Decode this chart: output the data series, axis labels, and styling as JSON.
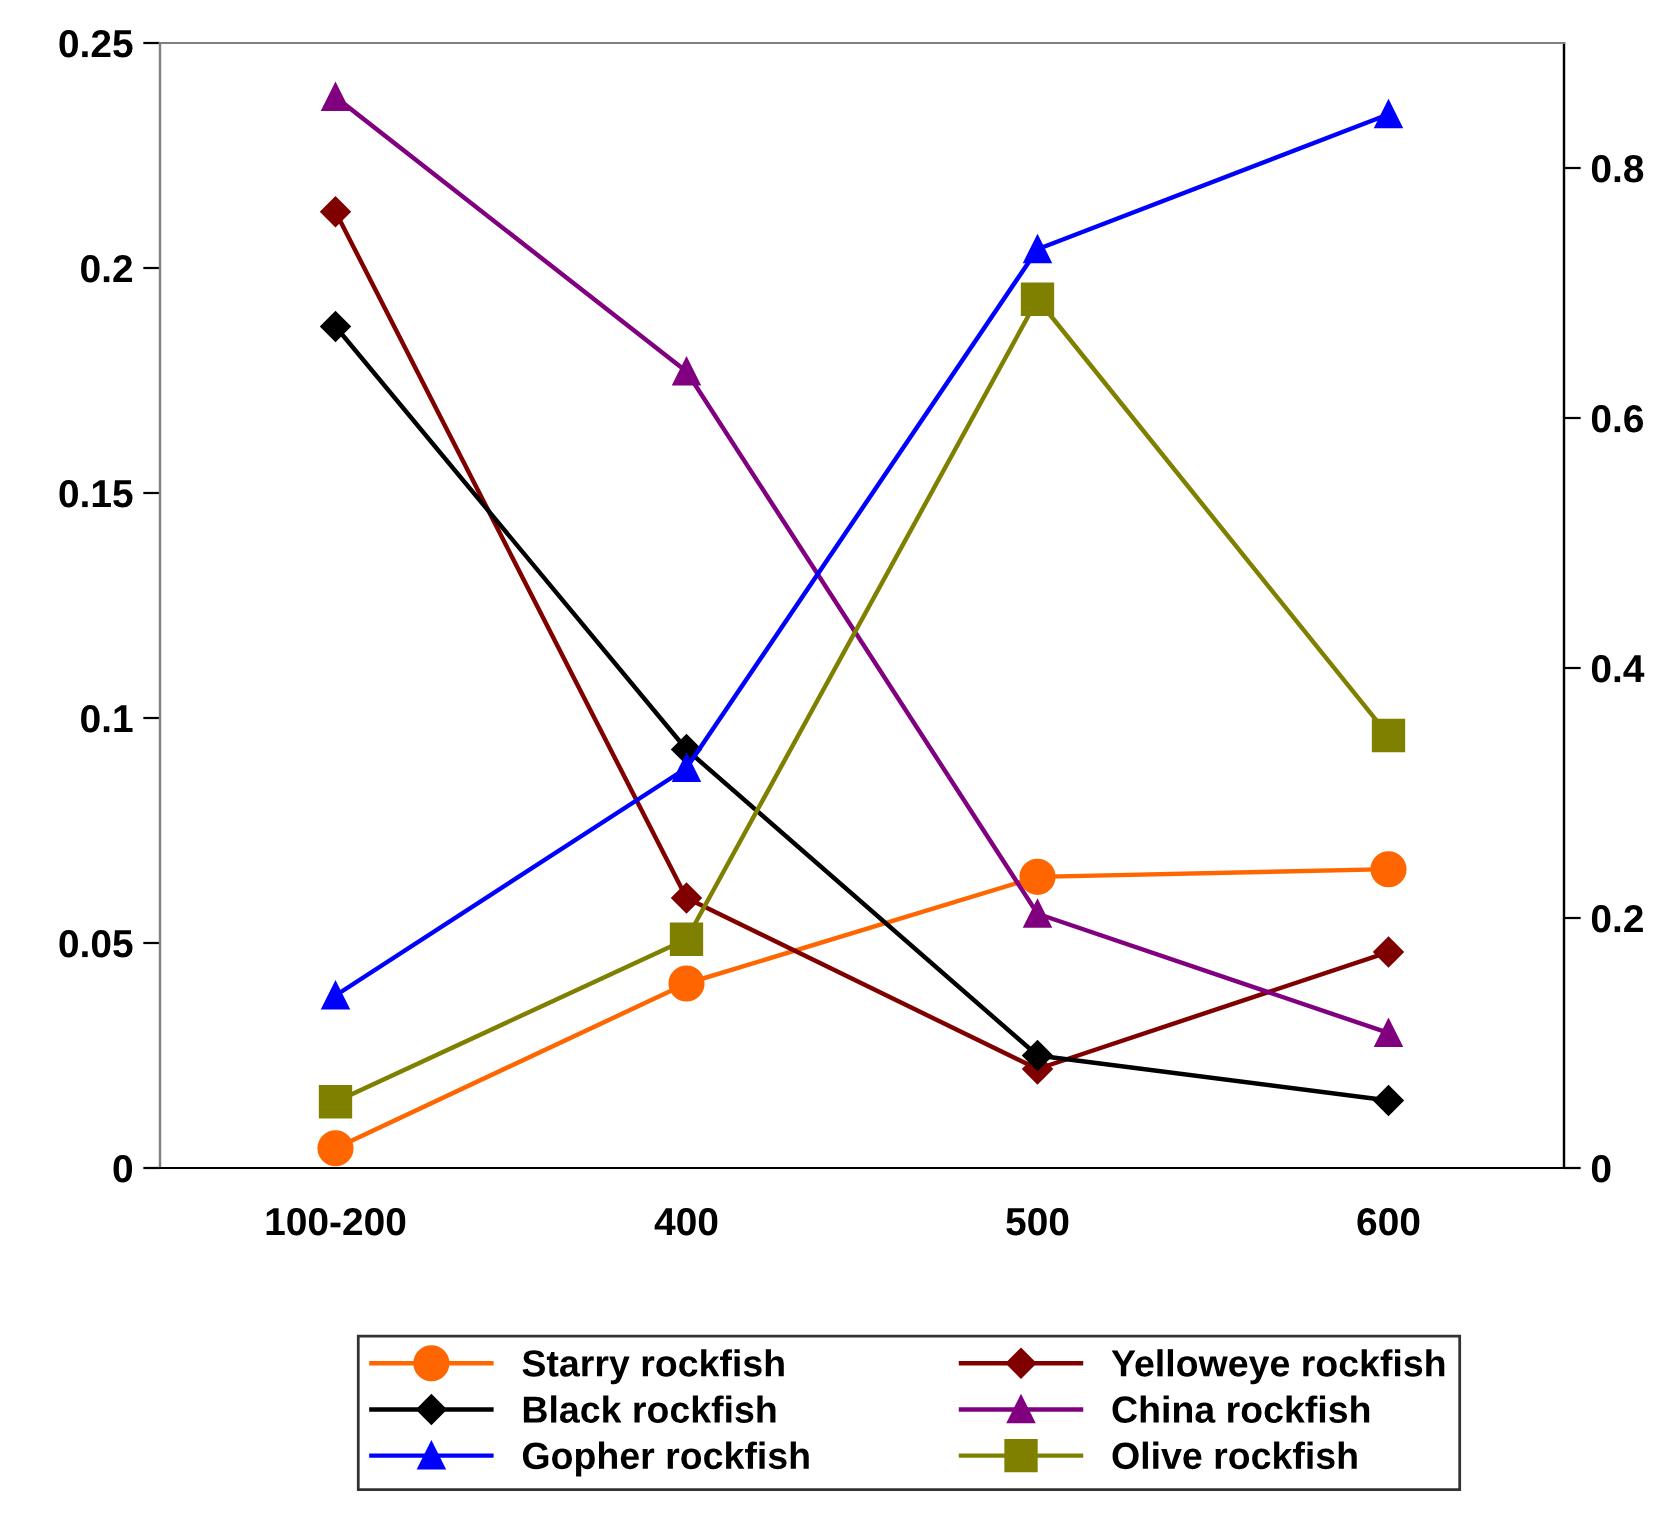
{
  "chart_data": {
    "type": "line",
    "categories": [
      "100-200",
      "400",
      "500",
      "600"
    ],
    "series": [
      {
        "name": "Starry rockfish",
        "color": "#ff6600",
        "marker": "circle",
        "values": [
          0.0044,
          0.041,
          0.0647,
          0.0664
        ]
      },
      {
        "name": "Yelloweye rockfish",
        "color": "#800000",
        "marker": "diamond",
        "values": [
          0.2125,
          0.06,
          0.022,
          0.048
        ]
      },
      {
        "name": "Black rockfish",
        "color": "#000000",
        "marker": "diamond",
        "values": [
          0.187,
          0.093,
          0.025,
          0.015
        ]
      },
      {
        "name": "China rockfish",
        "color": "#800080",
        "marker": "triangle",
        "values": [
          0.238,
          0.177,
          0.0565,
          0.03
        ]
      },
      {
        "name": "Gopher rockfish",
        "color": "#0000ff",
        "marker": "triangle",
        "axis": "y2",
        "values": [
          0.138,
          0.32,
          0.735,
          0.843
        ]
      },
      {
        "name": "Olive rockfish",
        "color": "#808000",
        "marker": "square",
        "axis": "y2",
        "values": [
          0.053,
          0.183,
          0.695,
          0.346
        ]
      }
    ],
    "ylim": [
      0,
      0.25
    ],
    "yticks": [
      0,
      0.05,
      0.1,
      0.15,
      0.2,
      0.25
    ],
    "y2lim": [
      0,
      0.9
    ],
    "y2ticks": [
      0,
      0.2,
      0.4,
      0.6,
      0.8
    ],
    "grid": false,
    "legend": "bottom",
    "line_style": "solid"
  }
}
